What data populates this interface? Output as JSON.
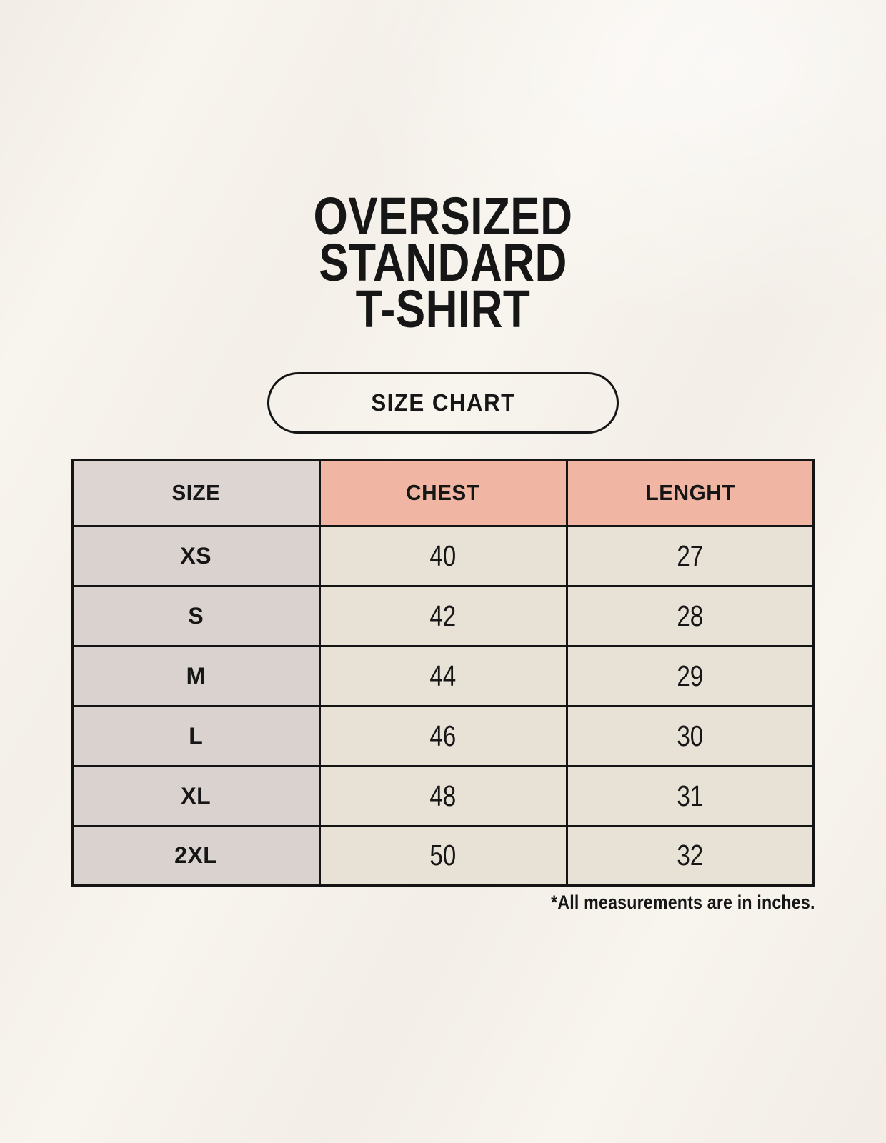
{
  "page": {
    "title_lines": [
      "OVERSIZED",
      "STANDARD",
      "T-SHIRT"
    ],
    "badge_label": "SIZE CHART",
    "footnote": "*All measurements are in inches."
  },
  "chart_data": {
    "type": "table",
    "title": "OVERSIZED STANDARD T-SHIRT SIZE CHART",
    "units": "inches",
    "columns": [
      "SIZE",
      "CHEST",
      "LENGHT"
    ],
    "rows": [
      {
        "size": "XS",
        "chest": 40,
        "length": 27
      },
      {
        "size": "S",
        "chest": 42,
        "length": 28
      },
      {
        "size": "M",
        "chest": 44,
        "length": 29
      },
      {
        "size": "L",
        "chest": 46,
        "length": 30
      },
      {
        "size": "XL",
        "chest": 48,
        "length": 31
      },
      {
        "size": "2XL",
        "chest": 50,
        "length": 32
      }
    ]
  },
  "colors": {
    "background": "#f8f4ee",
    "header_size_bg": "#ddd5d2",
    "header_measure_bg": "#f0b6a3",
    "row_size_bg": "#d9d2cf",
    "row_value_bg": "#e8e1d6",
    "border": "#141414",
    "text": "#161616"
  }
}
